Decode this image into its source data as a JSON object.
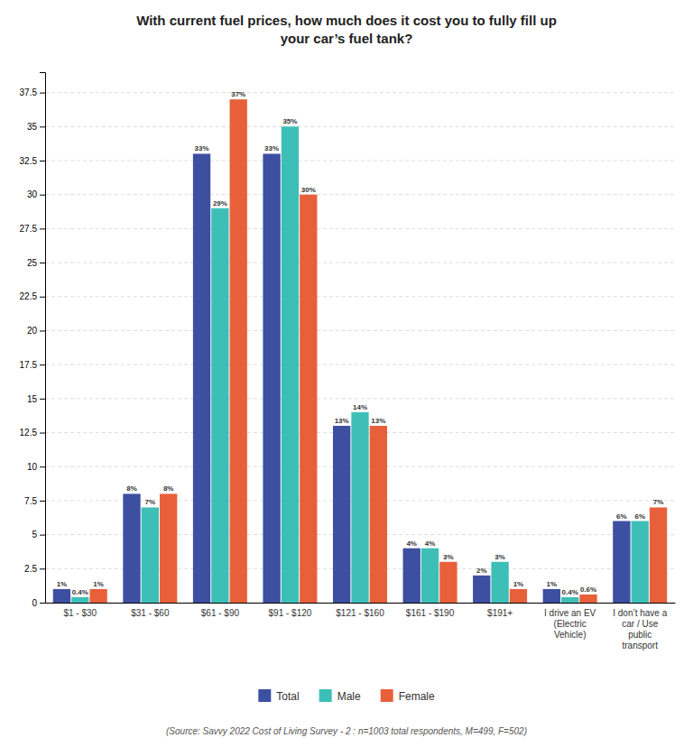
{
  "chart_data": {
    "type": "bar",
    "title": "With current fuel prices, how much does it cost you to fully fill up\nyour car’s fuel tank?",
    "annotations": [
      "(Source: Savvy 2022 Cost of Living Survey - 2 : n=1003 total respondents, M=499, F=502)"
    ],
    "categories": [
      "$1 - $30",
      "$31 - $60",
      "$61 - $90",
      "$91 - $120",
      "$121 - $160",
      "$161 - $190",
      "$191+",
      "I drive an EV\n(Electric\nVehicle)",
      "I don’t have a\ncar / Use\npublic\ntransport"
    ],
    "series": [
      {
        "name": "Total",
        "color": "#3d4fa0",
        "values": [
          1,
          8,
          33,
          33,
          13,
          4,
          2,
          1,
          6
        ],
        "value_labels": [
          "1%",
          "8%",
          "33%",
          "33%",
          "13%",
          "4%",
          "2%",
          "1%",
          "6%"
        ]
      },
      {
        "name": "Male",
        "color": "#3dbfb8",
        "values": [
          0.4,
          7,
          29,
          35,
          14,
          4,
          3,
          0.4,
          6
        ],
        "value_labels": [
          "0.4%",
          "7%",
          "29%",
          "35%",
          "14%",
          "4%",
          "3%",
          "0.4%",
          "6%"
        ]
      },
      {
        "name": "Female",
        "color": "#e8603a",
        "values": [
          1,
          8,
          37,
          30,
          13,
          3,
          1,
          0.6,
          7
        ],
        "value_labels": [
          "1%",
          "8%",
          "37%",
          "30%",
          "13%",
          "3%",
          "1%",
          "0.6%",
          "7%"
        ]
      }
    ],
    "ylim": [
      0,
      39
    ],
    "yticks": [
      0,
      2.5,
      5,
      7.5,
      10,
      12.5,
      15,
      17.5,
      20,
      22.5,
      25,
      27.5,
      30,
      32.5,
      35,
      37.5
    ],
    "grid": true,
    "legend": "bottom",
    "data_labels": true
  }
}
